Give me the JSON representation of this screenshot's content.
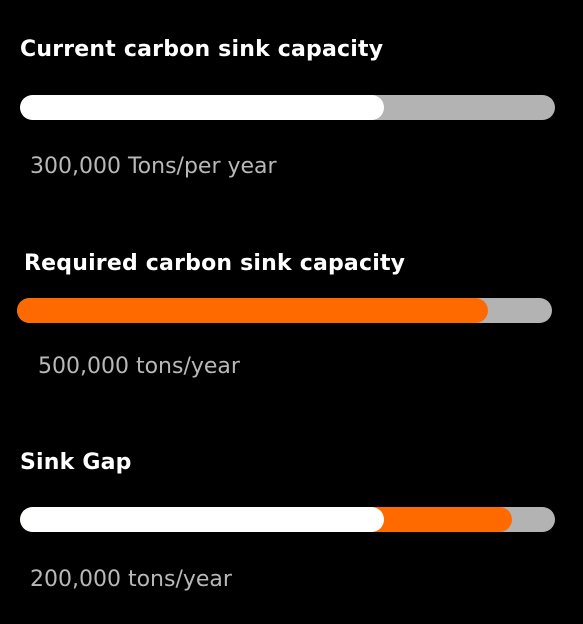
{
  "colors": {
    "background": "#000000",
    "track": "#b3b3b3",
    "current_fill": "#ffffff",
    "required_fill": "#ff6a00",
    "gap_fill": "#ff6a00",
    "label_text": "#ffffff",
    "value_text": "#b8b8b8"
  },
  "metrics": [
    {
      "id": "current",
      "label": "Current carbon sink capacity",
      "value_text": "300,000 Tons/per year",
      "fill_fraction": 0.68
    },
    {
      "id": "required",
      "label": "Required carbon sink capacity",
      "value_text": "500,000 tons/year",
      "fill_fraction": 0.88
    },
    {
      "id": "gap",
      "label": "Sink Gap",
      "value_text": "200,000 tons/year",
      "base_fraction": 0.68,
      "gap_end_fraction": 0.92
    }
  ]
}
